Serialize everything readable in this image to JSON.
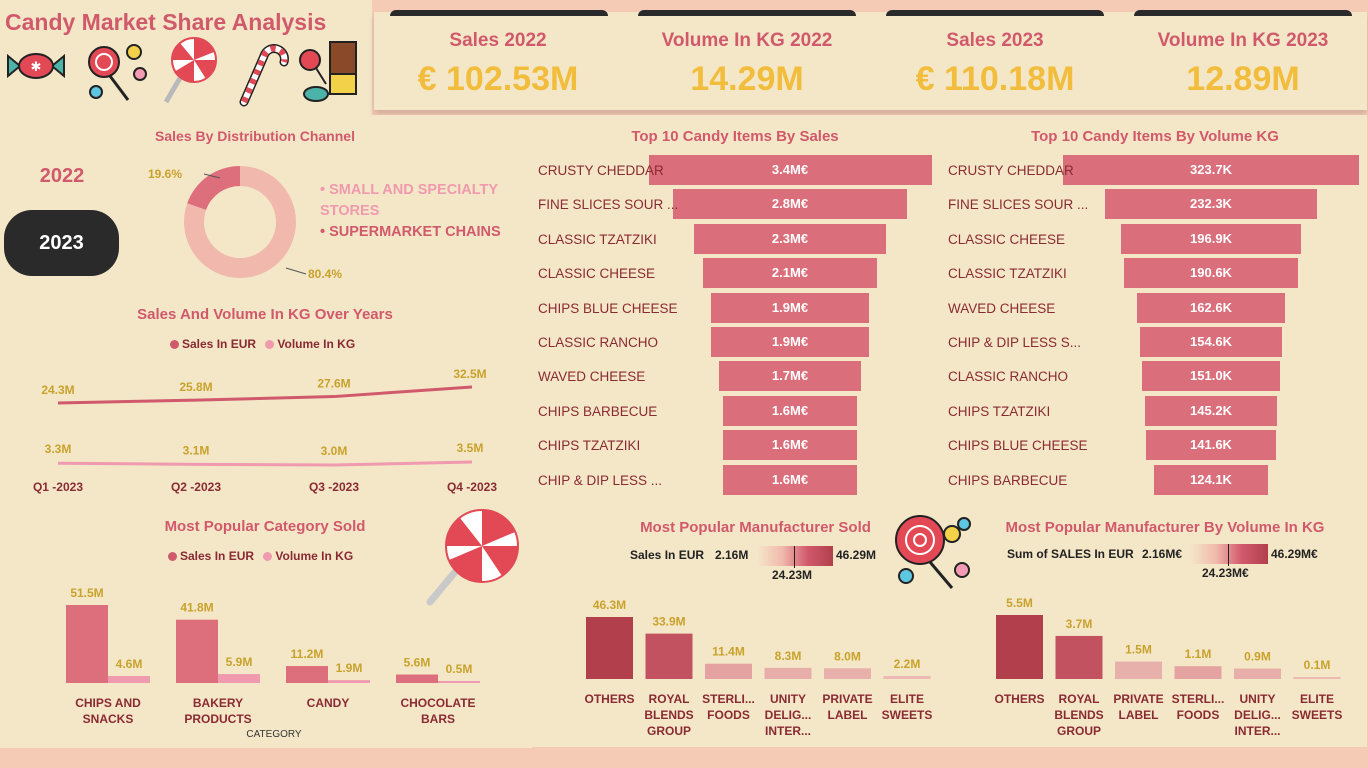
{
  "title": "Candy Market Share Analysis",
  "kpis": [
    {
      "label": "Sales 2022",
      "value": "€ 102.53M"
    },
    {
      "label": "Volume In KG 2022",
      "value": "14.29M"
    },
    {
      "label": "Sales 2023",
      "value": "€ 110.18M"
    },
    {
      "label": "Volume In KG 2023",
      "value": "12.89M"
    }
  ],
  "year_slicer": {
    "options": [
      "2022",
      "2023"
    ],
    "selected": "2023"
  },
  "distribution": {
    "title": "Sales By Distribution Channel",
    "legend": [
      "SMALL AND SPECIALTY STORES",
      "SUPERMARKET CHAINS"
    ],
    "slices": [
      {
        "label": "19.6%",
        "value": 19.6,
        "color": "#dd6f7d"
      },
      {
        "label": "80.4%",
        "value": 80.4,
        "color": "#f1b9ad"
      }
    ]
  },
  "sales_volume_years": {
    "title": "Sales And Volume In KG Over Years",
    "legend": [
      "Sales In EUR",
      "Volume In KG"
    ],
    "quarters": [
      "Q1 -2023",
      "Q2 -2023",
      "Q3 -2023",
      "Q4 -2023"
    ],
    "sales": [
      24.3,
      25.8,
      27.6,
      32.5
    ],
    "sales_labels": [
      "24.3M",
      "25.8M",
      "27.6M",
      "32.5M"
    ],
    "volume": [
      3.3,
      3.1,
      3.0,
      3.5
    ],
    "volume_labels": [
      "3.3M",
      "3.1M",
      "3.0M",
      "3.5M"
    ]
  },
  "category": {
    "title": "Most Popular Category Sold",
    "legend": [
      "Sales In EUR",
      "Volume In KG"
    ],
    "axis_label": "CATEGORY",
    "items": [
      {
        "name": "CHIPS AND SNACKS",
        "sales": 51.5,
        "sales_label": "51.5M",
        "volume": 4.6,
        "volume_label": "4.6M"
      },
      {
        "name": "BAKERY PRODUCTS",
        "sales": 41.8,
        "sales_label": "41.8M",
        "volume": 5.9,
        "volume_label": "5.9M"
      },
      {
        "name": "CANDY",
        "sales": 11.2,
        "sales_label": "11.2M",
        "volume": 1.9,
        "volume_label": "1.9M"
      },
      {
        "name": "CHOCOLATE BARS",
        "sales": 5.6,
        "sales_label": "5.6M",
        "volume": 0.5,
        "volume_label": "0.5M"
      }
    ]
  },
  "top_sales": {
    "title": "Top 10 Candy Items By Sales",
    "items": [
      {
        "name": "CRUSTY CHEDDAR",
        "value": 3.4,
        "label": "3.4M€"
      },
      {
        "name": "FINE SLICES SOUR ...",
        "value": 2.8,
        "label": "2.8M€"
      },
      {
        "name": "CLASSIC TZATZIKI",
        "value": 2.3,
        "label": "2.3M€"
      },
      {
        "name": "CLASSIC CHEESE",
        "value": 2.1,
        "label": "2.1M€"
      },
      {
        "name": "CHIPS BLUE CHEESE",
        "value": 1.9,
        "label": "1.9M€"
      },
      {
        "name": "CLASSIC RANCHO",
        "value": 1.9,
        "label": "1.9M€"
      },
      {
        "name": "WAVED CHEESE",
        "value": 1.7,
        "label": "1.7M€"
      },
      {
        "name": "CHIPS BARBECUE",
        "value": 1.6,
        "label": "1.6M€"
      },
      {
        "name": "CHIPS TZATZIKI",
        "value": 1.6,
        "label": "1.6M€"
      },
      {
        "name": "CHIP & DIP LESS ...",
        "value": 1.6,
        "label": "1.6M€"
      }
    ]
  },
  "top_volume": {
    "title": "Top 10 Candy Items By Volume KG",
    "items": [
      {
        "name": "CRUSTY CHEDDAR",
        "value": 323.7,
        "label": "323.7K"
      },
      {
        "name": "FINE SLICES SOUR ...",
        "value": 232.3,
        "label": "232.3K"
      },
      {
        "name": "CLASSIC CHEESE",
        "value": 196.9,
        "label": "196.9K"
      },
      {
        "name": "CLASSIC TZATZIKI",
        "value": 190.6,
        "label": "190.6K"
      },
      {
        "name": "WAVED CHEESE",
        "value": 162.6,
        "label": "162.6K"
      },
      {
        "name": "CHIP & DIP LESS S...",
        "value": 154.6,
        "label": "154.6K"
      },
      {
        "name": "CLASSIC RANCHO",
        "value": 151.0,
        "label": "151.0K"
      },
      {
        "name": "CHIPS TZATZIKI",
        "value": 145.2,
        "label": "145.2K"
      },
      {
        "name": "CHIPS BLUE CHEESE",
        "value": 141.6,
        "label": "141.6K"
      },
      {
        "name": "CHIPS BARBECUE",
        "value": 124.1,
        "label": "124.1K"
      }
    ]
  },
  "manufacturer_sales": {
    "title": "Most Popular Manufacturer Sold",
    "gradient_label": "Sales In EUR",
    "min_label": "2.16M",
    "mid_label": "24.23M",
    "max_label": "46.29M",
    "items": [
      {
        "name": "OTHERS",
        "value": 46.3,
        "label": "46.3M",
        "color": "#b2404c"
      },
      {
        "name": "ROYAL BLENDS GROUP",
        "value": 33.9,
        "label": "33.9M",
        "color": "#c2525f"
      },
      {
        "name": "STERLI... FOODS",
        "value": 11.4,
        "label": "11.4M",
        "color": "#e4a2a1"
      },
      {
        "name": "UNITY DELIG... INTER...",
        "value": 8.3,
        "label": "8.3M",
        "color": "#e8aea9"
      },
      {
        "name": "PRIVATE LABEL",
        "value": 8.0,
        "label": "8.0M",
        "color": "#e8b0ab"
      },
      {
        "name": "ELITE SWEETS",
        "value": 2.2,
        "label": "2.2M",
        "color": "#ecbab2"
      }
    ]
  },
  "manufacturer_volume": {
    "title": "Most Popular Manufacturer By Volume In KG",
    "gradient_label": "Sum of SALES In EUR",
    "min_label": "2.16M€",
    "mid_label": "24.23M€",
    "max_label": "46.29M€",
    "items": [
      {
        "name": "OTHERS",
        "value": 5.5,
        "label": "5.5M",
        "color": "#b2404c"
      },
      {
        "name": "ROYAL BLENDS GROUP",
        "value": 3.7,
        "label": "3.7M",
        "color": "#c2525f"
      },
      {
        "name": "PRIVATE LABEL",
        "value": 1.5,
        "label": "1.5M",
        "color": "#e8b0ab"
      },
      {
        "name": "STERLI... FOODS",
        "value": 1.1,
        "label": "1.1M",
        "color": "#e4a2a1"
      },
      {
        "name": "UNITY DELIG... INTER...",
        "value": 0.9,
        "label": "0.9M",
        "color": "#e8aea9"
      },
      {
        "name": "ELITE SWEETS",
        "value": 0.1,
        "label": "0.1M",
        "color": "#ecbab2"
      }
    ]
  },
  "colors": {
    "sales": "#d1596c",
    "volume": "#ef9aae",
    "accent": "#f2bd3c"
  }
}
